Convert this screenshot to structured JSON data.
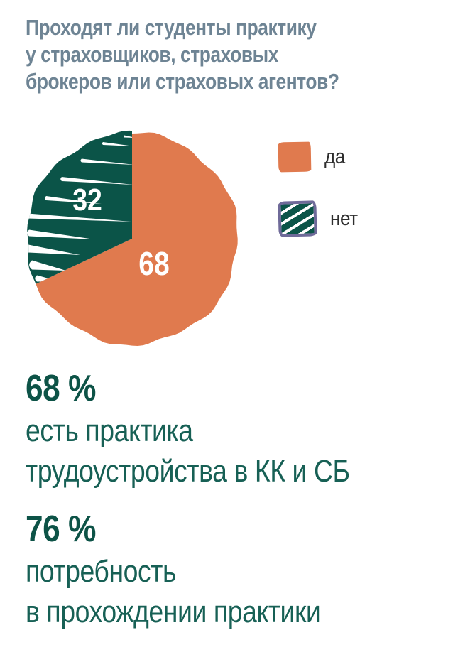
{
  "title": {
    "lines": [
      "Проходят ли студенты практику",
      "у страховщиков, страховых",
      "брокеров или страховых агентов?"
    ]
  },
  "chart_data": {
    "type": "pie",
    "title": "Проходят ли студенты практику у страховщиков, страховых брокеров или страховых агентов?",
    "labels": [
      "да",
      "нет"
    ],
    "values": [
      68,
      32
    ],
    "colors": [
      "#e07a4e",
      "#0b5448"
    ],
    "hatched": [
      false,
      true
    ],
    "slice_label_color": "#ffffff",
    "start_angle_deg": 0,
    "direction": "clockwise",
    "legend_position": "right",
    "style": "hand-drawn, white brush-stroke hatching on the 'нет' slice"
  },
  "legend": {
    "items": [
      {
        "label": "да",
        "color": "#e07a4e",
        "hatched": false
      },
      {
        "label": "нет",
        "color": "#0b5448",
        "hatched": true,
        "border_color": "#6f6a99"
      }
    ]
  },
  "stats": [
    {
      "value": "68 %",
      "lines": [
        "есть практика",
        "трудоустройства в КК и СБ"
      ]
    },
    {
      "value": "76 %",
      "lines": [
        "потребность",
        "в прохождении практики"
      ]
    }
  ],
  "colors": {
    "background": "#ffffff",
    "title_text": "#6e8494",
    "stat_value_text": "#0d5347",
    "stat_body_text": "#176055",
    "legend_label_text": "#2e2e2e",
    "pie_yes": "#e07a4e",
    "pie_no": "#0b5448",
    "hatch_swatch_border": "#6f6a99",
    "slice_label": "#ffffff"
  }
}
